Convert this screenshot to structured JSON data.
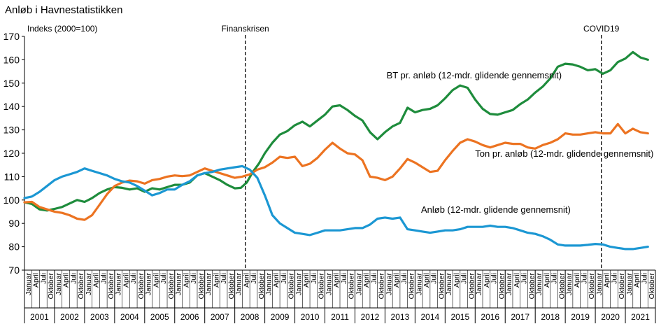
{
  "chart_data": {
    "type": "line",
    "title": "Anløb i Havnestatistikken",
    "ylabel": "Indeks  (2000=100)",
    "ylim": [
      70,
      170
    ],
    "yticks": [
      70,
      80,
      90,
      100,
      110,
      120,
      130,
      140,
      150,
      160,
      170
    ],
    "grid": false,
    "years": [
      "2001",
      "2002",
      "2003",
      "2004",
      "2005",
      "2006",
      "2007",
      "2008",
      "2009",
      "2010",
      "2011",
      "2012",
      "2013",
      "2014",
      "2015",
      "2016",
      "2017",
      "2018",
      "2019",
      "2020",
      "2021"
    ],
    "months": [
      "Januar",
      "April",
      "Juli",
      "Oktober"
    ],
    "last_year_quarters": 4,
    "x_range": [
      2001.0,
      2021.75
    ],
    "annotations": [
      {
        "label": "Finanskrisen",
        "x": 2008.35
      },
      {
        "label": "COVID19",
        "x": 2020.2
      }
    ],
    "series": [
      {
        "name": "BT pr. anløb (12-mdr. glidende gennemsnit)",
        "color": "#1e8c3c",
        "label_pos": [
          2013.05,
          152
        ],
        "label_anchor": "start",
        "points": [
          [
            2001.0,
            99
          ],
          [
            2001.25,
            98.3
          ],
          [
            2001.5,
            96
          ],
          [
            2001.75,
            95.5
          ],
          [
            2002.0,
            96.2
          ],
          [
            2002.25,
            97
          ],
          [
            2002.5,
            98.5
          ],
          [
            2002.75,
            100
          ],
          [
            2003.0,
            99.2
          ],
          [
            2003.25,
            100.8
          ],
          [
            2003.5,
            103
          ],
          [
            2003.75,
            104.5
          ],
          [
            2004.0,
            105.5
          ],
          [
            2004.25,
            105.2
          ],
          [
            2004.5,
            104.5
          ],
          [
            2004.75,
            105
          ],
          [
            2005.0,
            103.5
          ],
          [
            2005.25,
            105
          ],
          [
            2005.5,
            104.5
          ],
          [
            2005.75,
            105.5
          ],
          [
            2006.0,
            106.5
          ],
          [
            2006.25,
            106.5
          ],
          [
            2006.5,
            107.5
          ],
          [
            2006.75,
            110.5
          ],
          [
            2007.0,
            111.5
          ],
          [
            2007.25,
            110
          ],
          [
            2007.5,
            108.5
          ],
          [
            2007.75,
            106.5
          ],
          [
            2008.0,
            105
          ],
          [
            2008.2,
            105.2
          ],
          [
            2008.4,
            107.5
          ],
          [
            2008.6,
            112
          ],
          [
            2008.8,
            115.5
          ],
          [
            2009.0,
            120
          ],
          [
            2009.25,
            124.5
          ],
          [
            2009.5,
            128
          ],
          [
            2009.75,
            129.5
          ],
          [
            2010.0,
            132
          ],
          [
            2010.25,
            133.5
          ],
          [
            2010.5,
            131.5
          ],
          [
            2010.75,
            134
          ],
          [
            2011.0,
            136.5
          ],
          [
            2011.25,
            140
          ],
          [
            2011.5,
            140.5
          ],
          [
            2011.75,
            138.5
          ],
          [
            2012.0,
            136
          ],
          [
            2012.25,
            134
          ],
          [
            2012.5,
            129
          ],
          [
            2012.75,
            126
          ],
          [
            2013.0,
            129
          ],
          [
            2013.25,
            131.5
          ],
          [
            2013.5,
            133
          ],
          [
            2013.75,
            139.5
          ],
          [
            2014.0,
            137.5
          ],
          [
            2014.25,
            138.5
          ],
          [
            2014.5,
            139
          ],
          [
            2014.75,
            140.5
          ],
          [
            2015.0,
            143.5
          ],
          [
            2015.25,
            147
          ],
          [
            2015.5,
            149
          ],
          [
            2015.75,
            148
          ],
          [
            2016.0,
            143
          ],
          [
            2016.25,
            139
          ],
          [
            2016.5,
            136.8
          ],
          [
            2016.75,
            136.5
          ],
          [
            2017.0,
            137.5
          ],
          [
            2017.25,
            138.5
          ],
          [
            2017.5,
            141
          ],
          [
            2017.75,
            143
          ],
          [
            2018.0,
            146
          ],
          [
            2018.25,
            148.5
          ],
          [
            2018.5,
            152
          ],
          [
            2018.75,
            157
          ],
          [
            2019.0,
            158.3
          ],
          [
            2019.25,
            158
          ],
          [
            2019.5,
            157
          ],
          [
            2019.75,
            155.5
          ],
          [
            2020.0,
            156
          ],
          [
            2020.25,
            154
          ],
          [
            2020.5,
            155.5
          ],
          [
            2020.75,
            159
          ],
          [
            2021.0,
            160.5
          ],
          [
            2021.25,
            163.3
          ],
          [
            2021.5,
            161
          ],
          [
            2021.75,
            160
          ]
        ]
      },
      {
        "name": "Ton pr. anløb (12-mdr. glidende gennemsnit)",
        "color": "#ec7321",
        "label_pos": [
          2016.0,
          118.5
        ],
        "label_anchor": "start",
        "points": [
          [
            2001.0,
            99
          ],
          [
            2001.25,
            99.2
          ],
          [
            2001.5,
            97
          ],
          [
            2001.75,
            96
          ],
          [
            2002.0,
            95
          ],
          [
            2002.25,
            94.5
          ],
          [
            2002.5,
            93.5
          ],
          [
            2002.75,
            92
          ],
          [
            2003.0,
            91.5
          ],
          [
            2003.25,
            93.5
          ],
          [
            2003.5,
            98
          ],
          [
            2003.75,
            102.5
          ],
          [
            2004.0,
            106
          ],
          [
            2004.25,
            107.5
          ],
          [
            2004.5,
            108.3
          ],
          [
            2004.75,
            108
          ],
          [
            2005.0,
            107
          ],
          [
            2005.25,
            108.5
          ],
          [
            2005.5,
            109
          ],
          [
            2005.75,
            110
          ],
          [
            2006.0,
            110.5
          ],
          [
            2006.25,
            110.2
          ],
          [
            2006.5,
            110.5
          ],
          [
            2006.75,
            112
          ],
          [
            2007.0,
            113.5
          ],
          [
            2007.25,
            112.5
          ],
          [
            2007.5,
            111.5
          ],
          [
            2007.75,
            110.5
          ],
          [
            2008.0,
            109.5
          ],
          [
            2008.25,
            110
          ],
          [
            2008.5,
            111
          ],
          [
            2008.75,
            113
          ],
          [
            2009.0,
            114
          ],
          [
            2009.25,
            116
          ],
          [
            2009.5,
            118.5
          ],
          [
            2009.75,
            118
          ],
          [
            2010.0,
            118.5
          ],
          [
            2010.25,
            114.5
          ],
          [
            2010.5,
            115.5
          ],
          [
            2010.75,
            118
          ],
          [
            2011.0,
            121.5
          ],
          [
            2011.25,
            124.5
          ],
          [
            2011.5,
            122
          ],
          [
            2011.75,
            120
          ],
          [
            2012.0,
            119.5
          ],
          [
            2012.25,
            117
          ],
          [
            2012.5,
            110
          ],
          [
            2012.75,
            109.5
          ],
          [
            2013.0,
            108.5
          ],
          [
            2013.25,
            110
          ],
          [
            2013.5,
            113.5
          ],
          [
            2013.75,
            117.5
          ],
          [
            2014.0,
            116
          ],
          [
            2014.25,
            114
          ],
          [
            2014.5,
            112
          ],
          [
            2014.75,
            112.5
          ],
          [
            2015.0,
            117
          ],
          [
            2015.25,
            121
          ],
          [
            2015.5,
            124.5
          ],
          [
            2015.75,
            126
          ],
          [
            2016.0,
            125
          ],
          [
            2016.25,
            123.5
          ],
          [
            2016.5,
            122.5
          ],
          [
            2016.75,
            123.5
          ],
          [
            2017.0,
            124.5
          ],
          [
            2017.25,
            124
          ],
          [
            2017.5,
            124
          ],
          [
            2017.75,
            122.5
          ],
          [
            2018.0,
            122
          ],
          [
            2018.25,
            123.5
          ],
          [
            2018.5,
            124.5
          ],
          [
            2018.75,
            126
          ],
          [
            2019.0,
            128.5
          ],
          [
            2019.25,
            128
          ],
          [
            2019.5,
            128
          ],
          [
            2019.75,
            128.5
          ],
          [
            2020.0,
            129
          ],
          [
            2020.25,
            128.5
          ],
          [
            2020.5,
            128.5
          ],
          [
            2020.75,
            132.5
          ],
          [
            2021.0,
            128.5
          ],
          [
            2021.25,
            130.5
          ],
          [
            2021.5,
            129
          ],
          [
            2021.75,
            128.5
          ]
        ]
      },
      {
        "name": "Anløb (12-mdr. glidende gennemsnit)",
        "color": "#1b97d3",
        "label_pos": [
          2014.2,
          94.5
        ],
        "label_anchor": "start",
        "points": [
          [
            2001.0,
            100.8
          ],
          [
            2001.25,
            101.5
          ],
          [
            2001.5,
            103.5
          ],
          [
            2001.75,
            106
          ],
          [
            2002.0,
            108.5
          ],
          [
            2002.25,
            110
          ],
          [
            2002.5,
            111
          ],
          [
            2002.75,
            112
          ],
          [
            2003.0,
            113.5
          ],
          [
            2003.25,
            112.5
          ],
          [
            2003.5,
            111.5
          ],
          [
            2003.75,
            110.5
          ],
          [
            2004.0,
            109
          ],
          [
            2004.25,
            108
          ],
          [
            2004.5,
            107.5
          ],
          [
            2004.75,
            106
          ],
          [
            2005.0,
            104
          ],
          [
            2005.25,
            102
          ],
          [
            2005.5,
            103
          ],
          [
            2005.75,
            104.5
          ],
          [
            2006.0,
            104.5
          ],
          [
            2006.25,
            106.5
          ],
          [
            2006.5,
            108
          ],
          [
            2006.75,
            110.5
          ],
          [
            2007.0,
            111.5
          ],
          [
            2007.25,
            112
          ],
          [
            2007.5,
            113
          ],
          [
            2007.75,
            113.5
          ],
          [
            2008.0,
            114
          ],
          [
            2008.25,
            114.5
          ],
          [
            2008.5,
            113
          ],
          [
            2008.75,
            109.5
          ],
          [
            2009.0,
            102
          ],
          [
            2009.25,
            93.5
          ],
          [
            2009.5,
            90
          ],
          [
            2009.75,
            88
          ],
          [
            2010.0,
            86
          ],
          [
            2010.25,
            85.5
          ],
          [
            2010.5,
            85
          ],
          [
            2010.75,
            86
          ],
          [
            2011.0,
            87
          ],
          [
            2011.25,
            87
          ],
          [
            2011.5,
            87
          ],
          [
            2011.75,
            87.5
          ],
          [
            2012.0,
            88
          ],
          [
            2012.25,
            88
          ],
          [
            2012.5,
            89.5
          ],
          [
            2012.75,
            92
          ],
          [
            2013.0,
            92.5
          ],
          [
            2013.25,
            92
          ],
          [
            2013.5,
            92.5
          ],
          [
            2013.75,
            87.5
          ],
          [
            2014.0,
            87
          ],
          [
            2014.25,
            86.5
          ],
          [
            2014.5,
            86
          ],
          [
            2014.75,
            86.5
          ],
          [
            2015.0,
            87
          ],
          [
            2015.25,
            87
          ],
          [
            2015.5,
            87.5
          ],
          [
            2015.75,
            88.5
          ],
          [
            2016.0,
            88.5
          ],
          [
            2016.25,
            88.5
          ],
          [
            2016.5,
            89
          ],
          [
            2016.75,
            88.5
          ],
          [
            2017.0,
            88.5
          ],
          [
            2017.25,
            88
          ],
          [
            2017.5,
            87
          ],
          [
            2017.75,
            86
          ],
          [
            2018.0,
            85.5
          ],
          [
            2018.25,
            84.5
          ],
          [
            2018.5,
            83
          ],
          [
            2018.75,
            81
          ],
          [
            2019.0,
            80.5
          ],
          [
            2019.25,
            80.5
          ],
          [
            2019.5,
            80.5
          ],
          [
            2019.75,
            80.8
          ],
          [
            2020.0,
            81.2
          ],
          [
            2020.25,
            81
          ],
          [
            2020.5,
            80
          ],
          [
            2020.75,
            79.5
          ],
          [
            2021.0,
            79
          ],
          [
            2021.25,
            79
          ],
          [
            2021.5,
            79.5
          ],
          [
            2021.75,
            80
          ]
        ]
      }
    ]
  }
}
